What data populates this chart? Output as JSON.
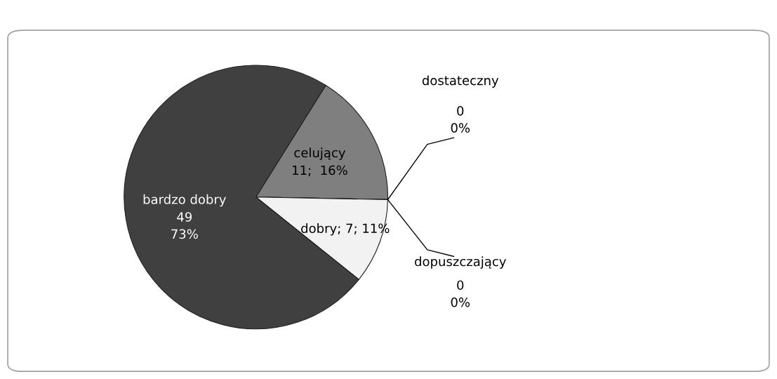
{
  "chart_data": {
    "type": "pie",
    "categories": [
      "celujący",
      "dostateczny",
      "dopuszczający",
      "dobry",
      "bardzo dobry"
    ],
    "values": [
      11,
      0,
      0,
      7,
      49
    ],
    "colors": [
      "#7f7f7f",
      "#262626",
      "#595959",
      "#f2f2f2",
      "#404040"
    ],
    "value_labels": [
      "11;  16%",
      "0\n0%",
      "0\n0%",
      "; 7; 11%",
      "49\n73%"
    ],
    "legend": false
  }
}
